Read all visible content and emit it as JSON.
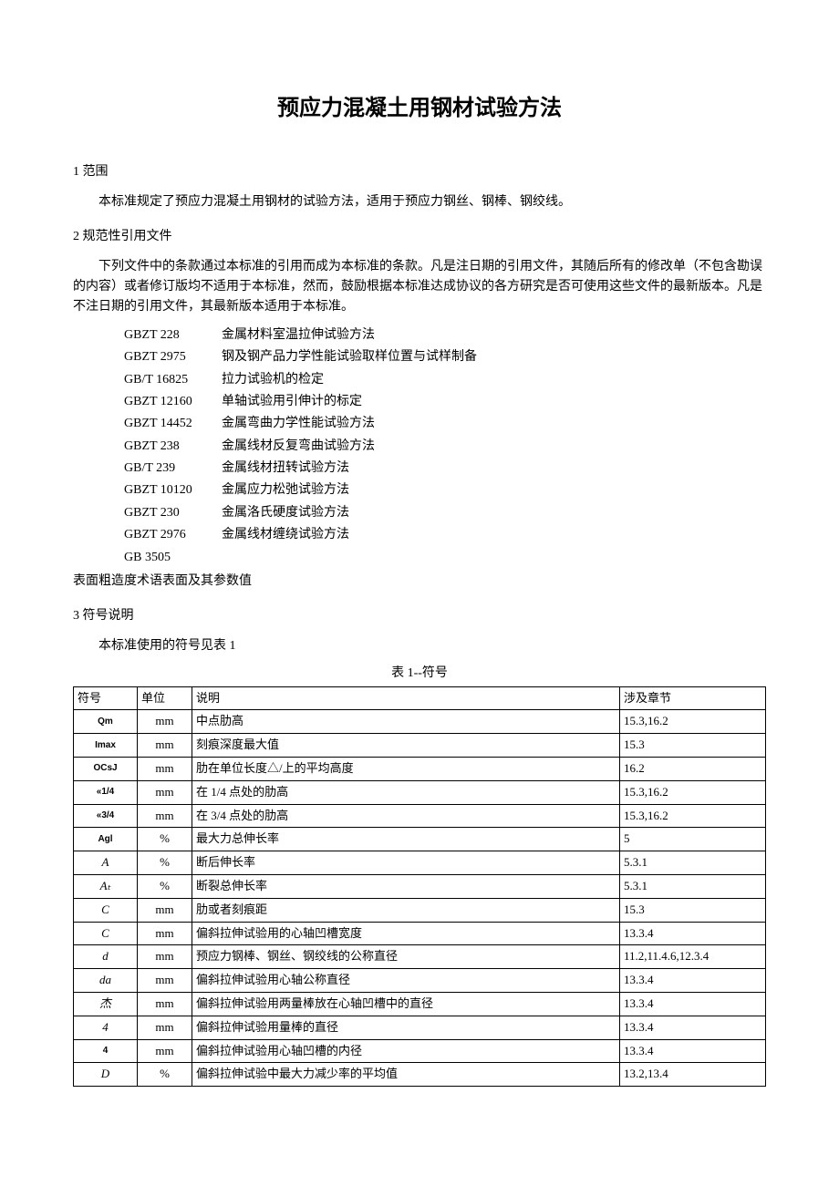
{
  "title": "预应力混凝土用钢材试验方法",
  "sections": {
    "s1": {
      "heading": "1 范围",
      "para": "本标准规定了预应力混凝土用钢材的试验方法，适用于预应力钢丝、钢棒、钢绞线。"
    },
    "s2": {
      "heading": "2 规范性引用文件",
      "para": "下列文件中的条款通过本标准的引用而成为本标准的条款。凡是注日期的引用文件，其随后所有的修改单（不包含勘误的内容）或者修订版均不适用于本标准，然而，鼓励根据本标准达成协议的各方研究是否可使用这些文件的最新版本。凡是不注日期的引用文件，其最新版本适用于本标准。",
      "refs": [
        {
          "code": "GBZT 228",
          "name": "金属材料室温拉伸试验方法"
        },
        {
          "code": "GBZT 2975",
          "name": "钢及钢产品力学性能试验取样位置与试样制备"
        },
        {
          "code": "GB/T 16825",
          "name": "拉力试验机的检定"
        },
        {
          "code": "GBZT 12160",
          "name": "单轴试验用引伸计的标定"
        },
        {
          "code": "GBZT 14452",
          "name": "金属弯曲力学性能试验方法"
        },
        {
          "code": "GBZT 238",
          "name": "金属线材反复弯曲试验方法"
        },
        {
          "code": "GB/T 239",
          "name": "金属线材扭转试验方法"
        },
        {
          "code": "GBZT 10120",
          "name": "金属应力松弛试验方法"
        },
        {
          "code": "GBZT 230",
          "name": "金属洛氏硬度试验方法"
        },
        {
          "code": "GBZT 2976",
          "name": "金属线材缠绕试验方法"
        },
        {
          "code": "GB 3505",
          "name": ""
        }
      ],
      "below": "表面粗造度术语表面及其参数值"
    },
    "s3": {
      "heading": "3 符号说明",
      "para": "本标准使用的符号见表 1",
      "tableCaption": "表 1--符号",
      "headers": {
        "c1": "符号",
        "c2": "单位",
        "c3": "说明",
        "c4": "涉及章节"
      },
      "rows": [
        {
          "sym": "Qm",
          "symClass": "upright",
          "unit": "mm",
          "desc": "中点肋高",
          "chap": "15.3,16.2"
        },
        {
          "sym": "Imax",
          "symClass": "upright",
          "unit": "mm",
          "desc": "刻痕深度最大值",
          "chap": "15.3"
        },
        {
          "sym": "OCsJ",
          "symClass": "upright",
          "unit": "mm",
          "desc": "肋在单位长度△/上的平均高度",
          "chap": "16.2"
        },
        {
          "sym": "«1/4",
          "symClass": "upright",
          "unit": "mm",
          "desc": "在 1/4 点处的肋高",
          "chap": "15.3,16.2"
        },
        {
          "sym": "«3/4",
          "symClass": "upright",
          "unit": "mm",
          "desc": "在 3/4 点处的肋高",
          "chap": "15.3,16.2"
        },
        {
          "sym": "Agl",
          "symClass": "upright",
          "unit": "%",
          "desc": "最大力总伸长率",
          "chap": "5"
        },
        {
          "sym": "A",
          "symClass": "",
          "unit": "%",
          "desc": "断后伸长率",
          "chap": "5.3.1"
        },
        {
          "sym": "Aₜ",
          "symClass": "",
          "unit": "%",
          "desc": "断裂总伸长率",
          "chap": "5.3.1"
        },
        {
          "sym": "C",
          "symClass": "",
          "unit": "mm",
          "desc": "肋或者刻痕距",
          "chap": "15.3"
        },
        {
          "sym": "C",
          "symClass": "",
          "unit": "mm",
          "desc": "偏斜拉伸试验用的心轴凹槽宽度",
          "chap": "13.3.4"
        },
        {
          "sym": "d",
          "symClass": "",
          "unit": "mm",
          "desc": "预应力钢棒、钢丝、钢绞线的公称直径",
          "chap": "11.2,11.4.6,12.3.4"
        },
        {
          "sym": "da",
          "symClass": "",
          "unit": "mm",
          "desc": "偏斜拉伸试验用心轴公称直径",
          "chap": "13.3.4"
        },
        {
          "sym": "杰",
          "symClass": "",
          "unit": "mm",
          "desc": "偏斜拉伸试验用两量棒放在心轴凹槽中的直径",
          "chap": "13.3.4"
        },
        {
          "sym": "4",
          "symClass": "",
          "unit": "mm",
          "desc": "偏斜拉伸试验用量棒的直径",
          "chap": "13.3.4"
        },
        {
          "sym": "4",
          "symClass": "upright",
          "unit": "mm",
          "desc": "偏斜拉伸试验用心轴凹槽的内径",
          "chap": "13.3.4"
        },
        {
          "sym": "D",
          "symClass": "",
          "unit": "%",
          "desc": "偏斜拉伸试验中最大力减少率的平均值",
          "chap": "13.2,13.4"
        }
      ]
    }
  },
  "style": {
    "colWidths": {
      "sym": "70px",
      "unit": "60px",
      "desc": "auto",
      "chap": "160px"
    }
  }
}
